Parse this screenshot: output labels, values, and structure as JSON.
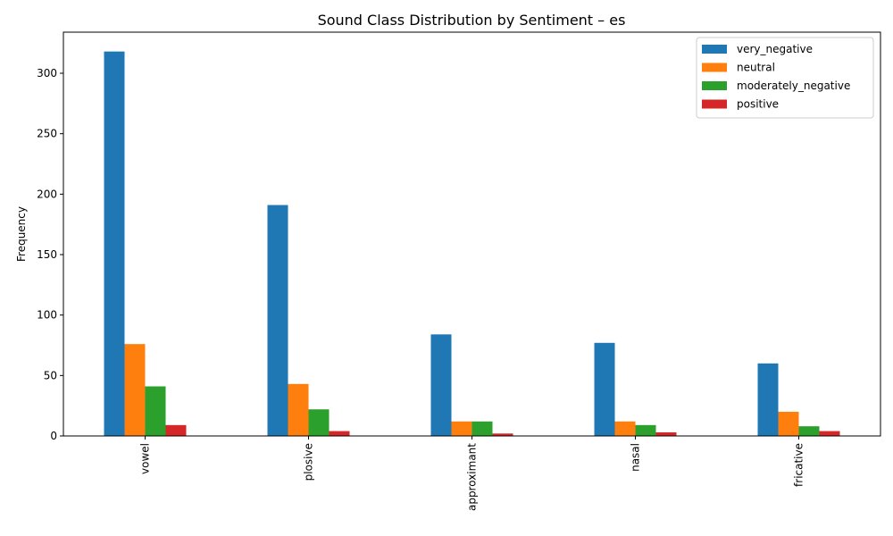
{
  "chart_data": {
    "type": "bar",
    "title": "Sound Class Distribution by Sentiment – es",
    "xlabel": "",
    "ylabel": "Frequency",
    "categories": [
      "vowel",
      "plosive",
      "approximant",
      "nasal",
      "fricative"
    ],
    "ylim": [
      0,
      334
    ],
    "yticks": [
      0,
      50,
      100,
      150,
      200,
      250,
      300
    ],
    "grid": false,
    "legend_position": "top-right",
    "series": [
      {
        "name": "very_negative",
        "color": "#1f77b4",
        "values": [
          318,
          191,
          84,
          77,
          60
        ]
      },
      {
        "name": "neutral",
        "color": "#ff7f0e",
        "values": [
          76,
          43,
          12,
          12,
          20
        ]
      },
      {
        "name": "moderately_negative",
        "color": "#2ca02c",
        "values": [
          41,
          22,
          12,
          9,
          8
        ]
      },
      {
        "name": "positive",
        "color": "#d62728",
        "values": [
          9,
          4,
          2,
          3,
          4
        ]
      }
    ]
  }
}
